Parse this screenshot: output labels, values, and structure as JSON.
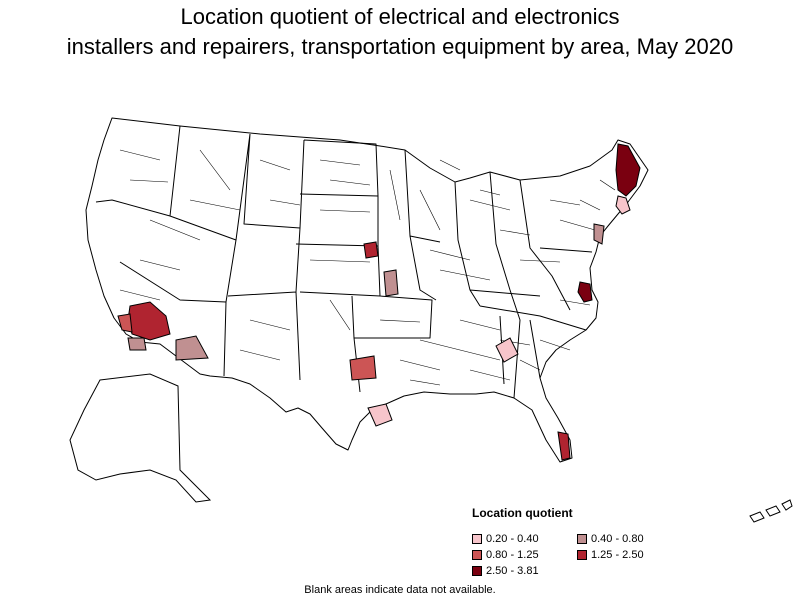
{
  "title_line1": "Location quotient of electrical and electronics",
  "title_line2": "installers and repairers, transportation equipment by area, May 2020",
  "legend": {
    "title": "Location quotient",
    "items": [
      {
        "label": "0.20 - 0.40",
        "color": "#f7c5cb"
      },
      {
        "label": "0.40 - 0.80",
        "color": "#c09091"
      },
      {
        "label": "0.80 - 1.25",
        "color": "#cc5555"
      },
      {
        "label": "1.25 - 2.50",
        "color": "#b02430"
      },
      {
        "label": "2.50 - 3.81",
        "color": "#7a0010"
      }
    ]
  },
  "note": "Blank areas indicate data not available.",
  "colors": {
    "border": "#000000",
    "blank": "#ffffff"
  }
}
